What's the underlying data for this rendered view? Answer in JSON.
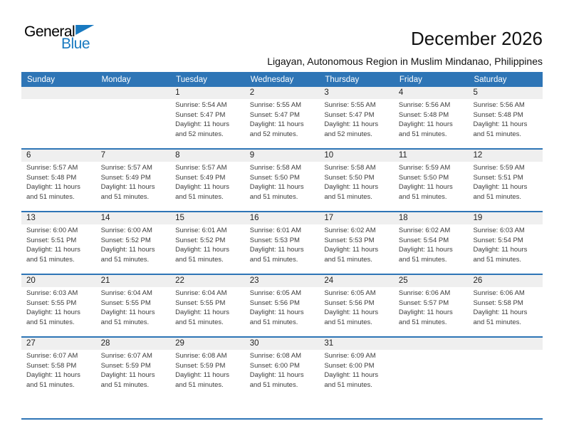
{
  "logo": {
    "general": "General",
    "blue": "Blue"
  },
  "header": {
    "title": "December 2026",
    "subtitle": "Ligayan, Autonomous Region in Muslim Mindanao, Philippines"
  },
  "day_headers": [
    "Sunday",
    "Monday",
    "Tuesday",
    "Wednesday",
    "Thursday",
    "Friday",
    "Saturday"
  ],
  "colors": {
    "header_blue": "#2E75B6",
    "logo_blue": "#1879C0",
    "band_gray": "#EFEFEF",
    "text_dark": "#3C3C3C"
  },
  "weeks": [
    {
      "cells": [
        {
          "day": "",
          "sunrise": "",
          "sunset": "",
          "daylight": ""
        },
        {
          "day": "",
          "sunrise": "",
          "sunset": "",
          "daylight": ""
        },
        {
          "day": "1",
          "sunrise": "Sunrise: 5:54 AM",
          "sunset": "Sunset: 5:47 PM",
          "daylight": "Daylight: 11 hours and 52 minutes."
        },
        {
          "day": "2",
          "sunrise": "Sunrise: 5:55 AM",
          "sunset": "Sunset: 5:47 PM",
          "daylight": "Daylight: 11 hours and 52 minutes."
        },
        {
          "day": "3",
          "sunrise": "Sunrise: 5:55 AM",
          "sunset": "Sunset: 5:47 PM",
          "daylight": "Daylight: 11 hours and 52 minutes."
        },
        {
          "day": "4",
          "sunrise": "Sunrise: 5:56 AM",
          "sunset": "Sunset: 5:48 PM",
          "daylight": "Daylight: 11 hours and 51 minutes."
        },
        {
          "day": "5",
          "sunrise": "Sunrise: 5:56 AM",
          "sunset": "Sunset: 5:48 PM",
          "daylight": "Daylight: 11 hours and 51 minutes."
        }
      ]
    },
    {
      "cells": [
        {
          "day": "6",
          "sunrise": "Sunrise: 5:57 AM",
          "sunset": "Sunset: 5:48 PM",
          "daylight": "Daylight: 11 hours and 51 minutes."
        },
        {
          "day": "7",
          "sunrise": "Sunrise: 5:57 AM",
          "sunset": "Sunset: 5:49 PM",
          "daylight": "Daylight: 11 hours and 51 minutes."
        },
        {
          "day": "8",
          "sunrise": "Sunrise: 5:57 AM",
          "sunset": "Sunset: 5:49 PM",
          "daylight": "Daylight: 11 hours and 51 minutes."
        },
        {
          "day": "9",
          "sunrise": "Sunrise: 5:58 AM",
          "sunset": "Sunset: 5:50 PM",
          "daylight": "Daylight: 11 hours and 51 minutes."
        },
        {
          "day": "10",
          "sunrise": "Sunrise: 5:58 AM",
          "sunset": "Sunset: 5:50 PM",
          "daylight": "Daylight: 11 hours and 51 minutes."
        },
        {
          "day": "11",
          "sunrise": "Sunrise: 5:59 AM",
          "sunset": "Sunset: 5:50 PM",
          "daylight": "Daylight: 11 hours and 51 minutes."
        },
        {
          "day": "12",
          "sunrise": "Sunrise: 5:59 AM",
          "sunset": "Sunset: 5:51 PM",
          "daylight": "Daylight: 11 hours and 51 minutes."
        }
      ]
    },
    {
      "cells": [
        {
          "day": "13",
          "sunrise": "Sunrise: 6:00 AM",
          "sunset": "Sunset: 5:51 PM",
          "daylight": "Daylight: 11 hours and 51 minutes."
        },
        {
          "day": "14",
          "sunrise": "Sunrise: 6:00 AM",
          "sunset": "Sunset: 5:52 PM",
          "daylight": "Daylight: 11 hours and 51 minutes."
        },
        {
          "day": "15",
          "sunrise": "Sunrise: 6:01 AM",
          "sunset": "Sunset: 5:52 PM",
          "daylight": "Daylight: 11 hours and 51 minutes."
        },
        {
          "day": "16",
          "sunrise": "Sunrise: 6:01 AM",
          "sunset": "Sunset: 5:53 PM",
          "daylight": "Daylight: 11 hours and 51 minutes."
        },
        {
          "day": "17",
          "sunrise": "Sunrise: 6:02 AM",
          "sunset": "Sunset: 5:53 PM",
          "daylight": "Daylight: 11 hours and 51 minutes."
        },
        {
          "day": "18",
          "sunrise": "Sunrise: 6:02 AM",
          "sunset": "Sunset: 5:54 PM",
          "daylight": "Daylight: 11 hours and 51 minutes."
        },
        {
          "day": "19",
          "sunrise": "Sunrise: 6:03 AM",
          "sunset": "Sunset: 5:54 PM",
          "daylight": "Daylight: 11 hours and 51 minutes."
        }
      ]
    },
    {
      "cells": [
        {
          "day": "20",
          "sunrise": "Sunrise: 6:03 AM",
          "sunset": "Sunset: 5:55 PM",
          "daylight": "Daylight: 11 hours and 51 minutes."
        },
        {
          "day": "21",
          "sunrise": "Sunrise: 6:04 AM",
          "sunset": "Sunset: 5:55 PM",
          "daylight": "Daylight: 11 hours and 51 minutes."
        },
        {
          "day": "22",
          "sunrise": "Sunrise: 6:04 AM",
          "sunset": "Sunset: 5:55 PM",
          "daylight": "Daylight: 11 hours and 51 minutes."
        },
        {
          "day": "23",
          "sunrise": "Sunrise: 6:05 AM",
          "sunset": "Sunset: 5:56 PM",
          "daylight": "Daylight: 11 hours and 51 minutes."
        },
        {
          "day": "24",
          "sunrise": "Sunrise: 6:05 AM",
          "sunset": "Sunset: 5:56 PM",
          "daylight": "Daylight: 11 hours and 51 minutes."
        },
        {
          "day": "25",
          "sunrise": "Sunrise: 6:06 AM",
          "sunset": "Sunset: 5:57 PM",
          "daylight": "Daylight: 11 hours and 51 minutes."
        },
        {
          "day": "26",
          "sunrise": "Sunrise: 6:06 AM",
          "sunset": "Sunset: 5:58 PM",
          "daylight": "Daylight: 11 hours and 51 minutes."
        }
      ]
    },
    {
      "cells": [
        {
          "day": "27",
          "sunrise": "Sunrise: 6:07 AM",
          "sunset": "Sunset: 5:58 PM",
          "daylight": "Daylight: 11 hours and 51 minutes."
        },
        {
          "day": "28",
          "sunrise": "Sunrise: 6:07 AM",
          "sunset": "Sunset: 5:59 PM",
          "daylight": "Daylight: 11 hours and 51 minutes."
        },
        {
          "day": "29",
          "sunrise": "Sunrise: 6:08 AM",
          "sunset": "Sunset: 5:59 PM",
          "daylight": "Daylight: 11 hours and 51 minutes."
        },
        {
          "day": "30",
          "sunrise": "Sunrise: 6:08 AM",
          "sunset": "Sunset: 6:00 PM",
          "daylight": "Daylight: 11 hours and 51 minutes."
        },
        {
          "day": "31",
          "sunrise": "Sunrise: 6:09 AM",
          "sunset": "Sunset: 6:00 PM",
          "daylight": "Daylight: 11 hours and 51 minutes."
        },
        {
          "day": "",
          "sunrise": "",
          "sunset": "",
          "daylight": ""
        },
        {
          "day": "",
          "sunrise": "",
          "sunset": "",
          "daylight": ""
        }
      ]
    }
  ]
}
